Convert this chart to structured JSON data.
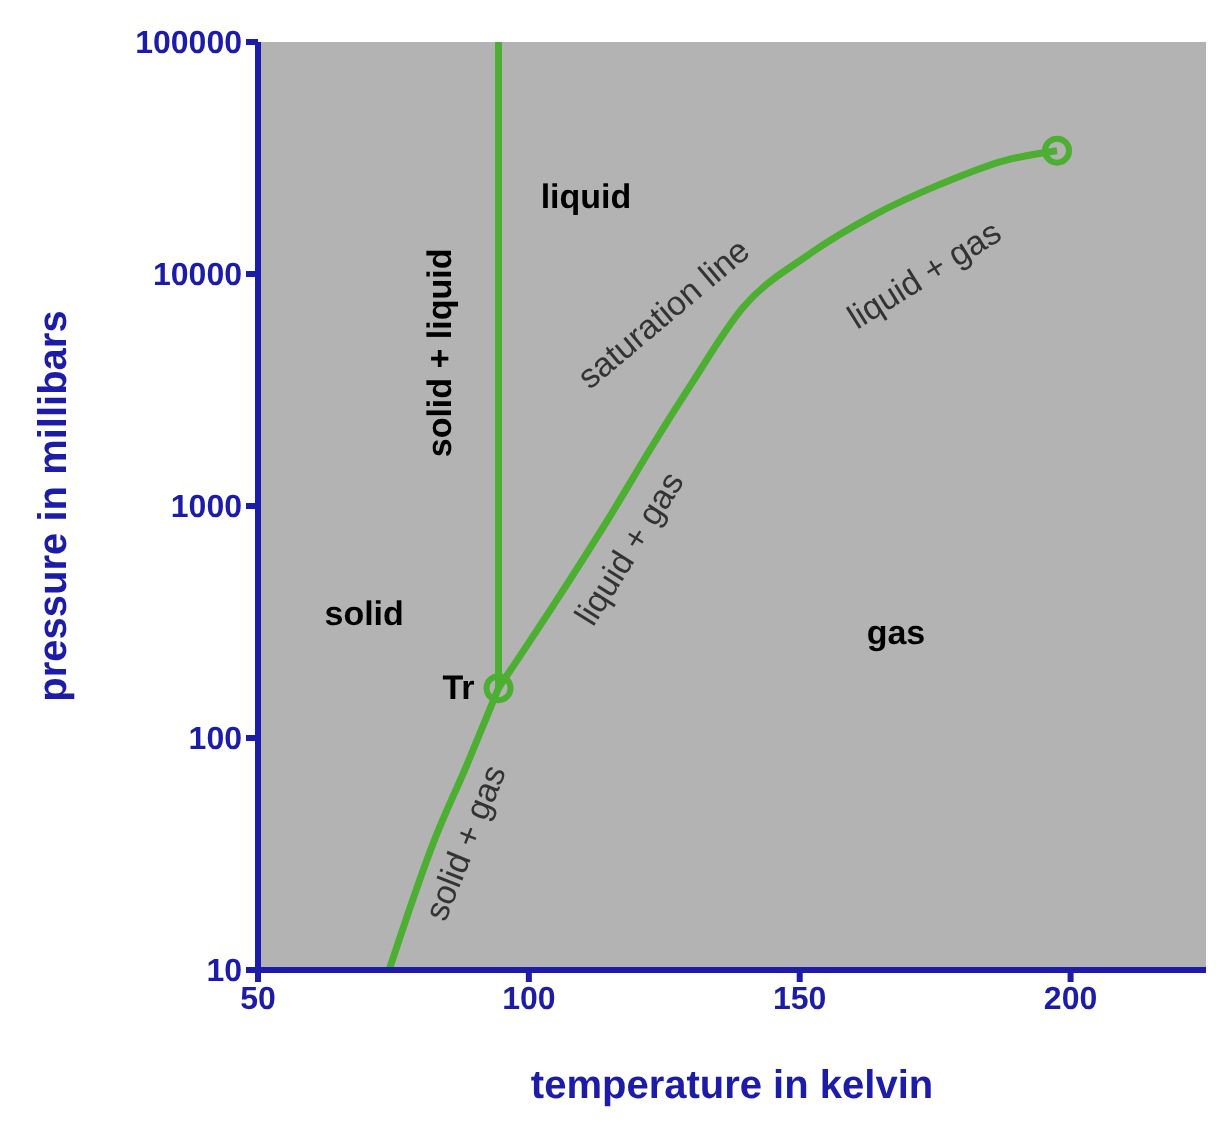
{
  "chart_data": {
    "type": "line",
    "xlabel": "temperature in kelvin",
    "ylabel": "pressure in millibars",
    "log": "y",
    "xlim": [
      50,
      225
    ],
    "xticks": [
      50,
      100,
      150,
      200
    ],
    "ylim": [
      10,
      100000
    ],
    "yticks": [
      10,
      100,
      1000,
      10000,
      100000
    ],
    "grid": false,
    "legend": false,
    "series": [
      {
        "color": "#4caf32",
        "x": [
          94.4,
          94.4
        ],
        "values": [
          164,
          100000
        ]
      },
      {
        "color": "#4caf32",
        "x": [
          74.2,
          82.5,
          88.7,
          94.4
        ],
        "values": [
          10,
          36,
          78,
          164
        ]
      },
      {
        "color": "#4caf32",
        "x": [
          94.4,
          105.5,
          115.3,
          122.5,
          129.8,
          139.6,
          151.6,
          163.6,
          176,
          188,
          197.5
        ],
        "values": [
          164,
          405,
          930,
          1770,
          3300,
          7200,
          12100,
          17900,
          24400,
          30900,
          34000
        ]
      },
      {
        "type": "scatter",
        "marker": "circle",
        "color": "#4caf32",
        "x": [
          94.4,
          197.5
        ],
        "values": [
          164,
          34000
        ]
      }
    ],
    "annotations": [
      "liquid",
      "solid + liquid",
      "saturation line",
      "liquid + gas",
      "liquid + gas",
      "solid",
      "gas",
      {
        "text": "Tr",
        "x": 94.4,
        "y": 164
      },
      "solid + gas"
    ]
  }
}
